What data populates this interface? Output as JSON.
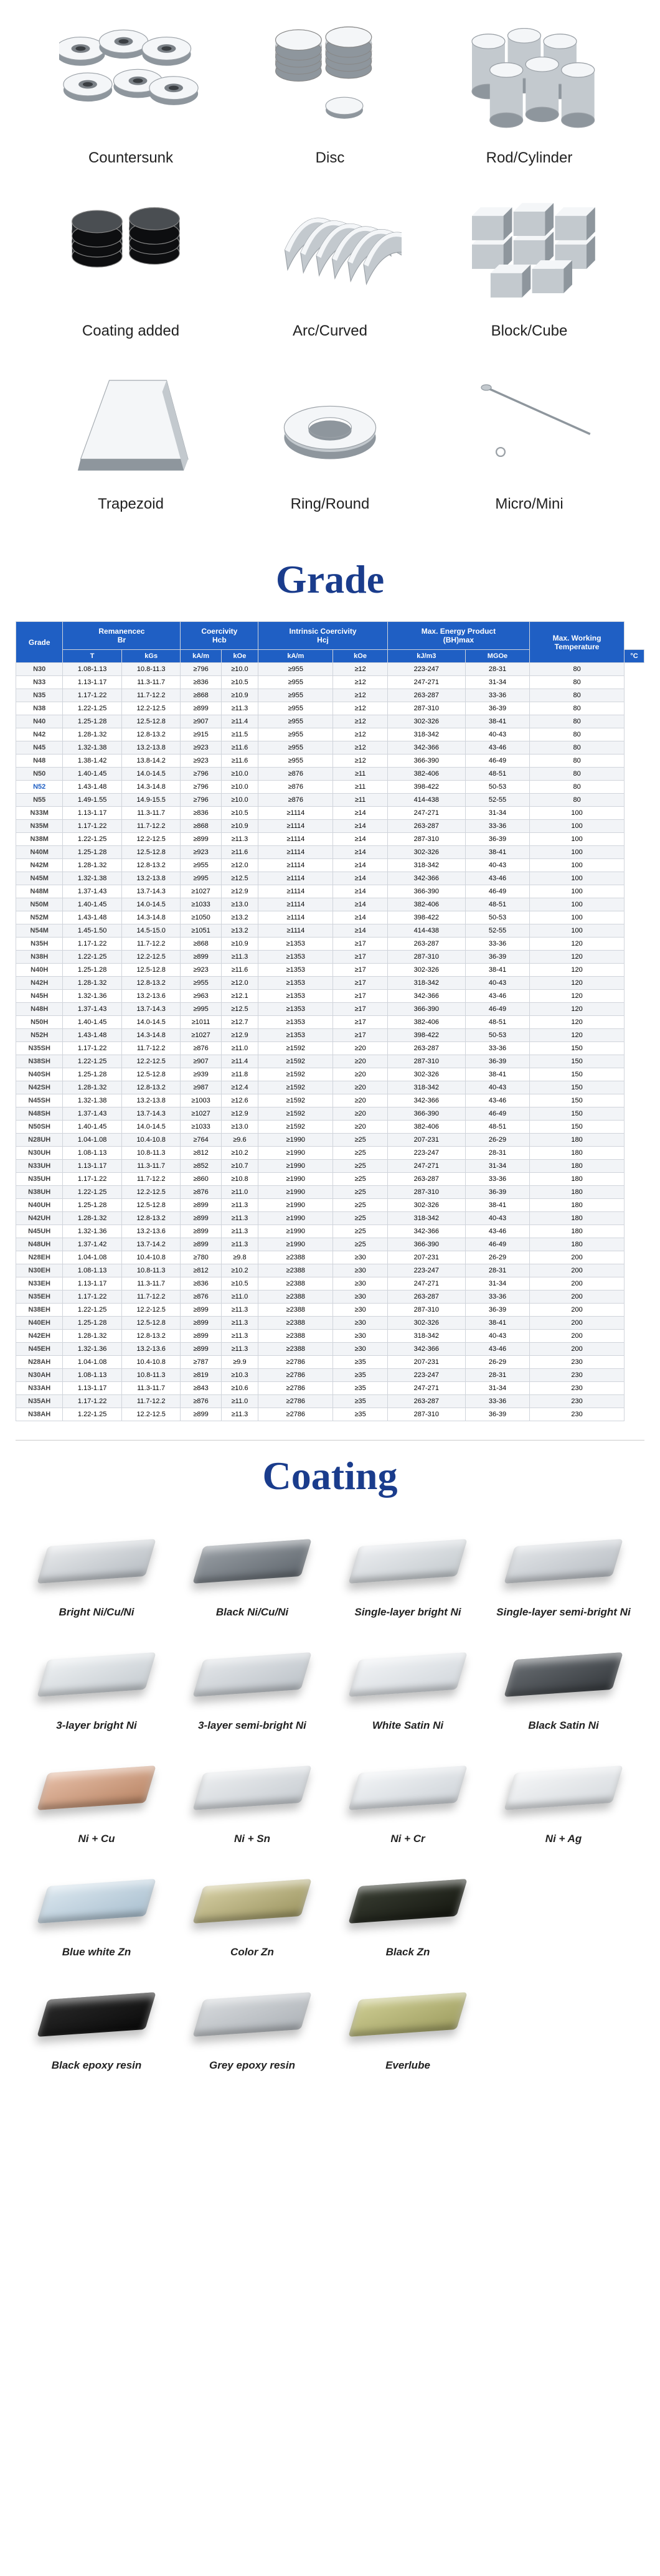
{
  "shapes": [
    {
      "id": "countersunk",
      "label": "Countersunk"
    },
    {
      "id": "disc",
      "label": "Disc"
    },
    {
      "id": "rod",
      "label": "Rod/Cylinder"
    },
    {
      "id": "coating-added",
      "label": "Coating added"
    },
    {
      "id": "arc",
      "label": "Arc/Curved"
    },
    {
      "id": "block",
      "label": "Block/Cube"
    },
    {
      "id": "trapezoid",
      "label": "Trapezoid"
    },
    {
      "id": "ring",
      "label": "Ring/Round"
    },
    {
      "id": "micro",
      "label": "Micro/Mini"
    }
  ],
  "section_titles": {
    "grade": "Grade",
    "coating": "Coating"
  },
  "grade_table": {
    "header_bg": "#1f5fc4",
    "header_fg": "#ffffff",
    "row_odd_bg": "#f2f4f7",
    "row_even_bg": "#ffffff",
    "border_color": "#d0d4db",
    "highlight_color": "#1f5fc4",
    "columns_top": [
      {
        "label": "Grade",
        "rowspan": 2
      },
      {
        "label": "Remanencec\nBr",
        "colspan": 2
      },
      {
        "label": "Coercivity\nHcb",
        "colspan": 2
      },
      {
        "label": "Intrinsic Coercivity\nHcj",
        "colspan": 2
      },
      {
        "label": "Max. Energy Product\n(BH)max",
        "colspan": 2
      },
      {
        "label": "Max. Working\nTemperature",
        "rowspan": 2
      }
    ],
    "columns_sub": [
      "T",
      "kGs",
      "kA/m",
      "kOe",
      "kA/m",
      "kOe",
      "kJ/m3",
      "MGOe",
      "°C"
    ],
    "rows": [
      [
        "N30",
        "1.08-1.13",
        "10.8-11.3",
        "≥796",
        "≥10.0",
        "≥955",
        "≥12",
        "223-247",
        "28-31",
        "80"
      ],
      [
        "N33",
        "1.13-1.17",
        "11.3-11.7",
        "≥836",
        "≥10.5",
        "≥955",
        "≥12",
        "247-271",
        "31-34",
        "80"
      ],
      [
        "N35",
        "1.17-1.22",
        "11.7-12.2",
        "≥868",
        "≥10.9",
        "≥955",
        "≥12",
        "263-287",
        "33-36",
        "80"
      ],
      [
        "N38",
        "1.22-1.25",
        "12.2-12.5",
        "≥899",
        "≥11.3",
        "≥955",
        "≥12",
        "287-310",
        "36-39",
        "80"
      ],
      [
        "N40",
        "1.25-1.28",
        "12.5-12.8",
        "≥907",
        "≥11.4",
        "≥955",
        "≥12",
        "302-326",
        "38-41",
        "80"
      ],
      [
        "N42",
        "1.28-1.32",
        "12.8-13.2",
        "≥915",
        "≥11.5",
        "≥955",
        "≥12",
        "318-342",
        "40-43",
        "80"
      ],
      [
        "N45",
        "1.32-1.38",
        "13.2-13.8",
        "≥923",
        "≥11.6",
        "≥955",
        "≥12",
        "342-366",
        "43-46",
        "80"
      ],
      [
        "N48",
        "1.38-1.42",
        "13.8-14.2",
        "≥923",
        "≥11.6",
        "≥955",
        "≥12",
        "366-390",
        "46-49",
        "80"
      ],
      [
        "N50",
        "1.40-1.45",
        "14.0-14.5",
        "≥796",
        "≥10.0",
        "≥876",
        "≥11",
        "382-406",
        "48-51",
        "80"
      ],
      [
        "N52",
        "1.43-1.48",
        "14.3-14.8",
        "≥796",
        "≥10.0",
        "≥876",
        "≥11",
        "398-422",
        "50-53",
        "80"
      ],
      [
        "N55",
        "1.49-1.55",
        "14.9-15.5",
        "≥796",
        "≥10.0",
        "≥876",
        "≥11",
        "414-438",
        "52-55",
        "80"
      ],
      [
        "N33M",
        "1.13-1.17",
        "11.3-11.7",
        "≥836",
        "≥10.5",
        "≥1114",
        "≥14",
        "247-271",
        "31-34",
        "100"
      ],
      [
        "N35M",
        "1.17-1.22",
        "11.7-12.2",
        "≥868",
        "≥10.9",
        "≥1114",
        "≥14",
        "263-287",
        "33-36",
        "100"
      ],
      [
        "N38M",
        "1.22-1.25",
        "12.2-12.5",
        "≥899",
        "≥11.3",
        "≥1114",
        "≥14",
        "287-310",
        "36-39",
        "100"
      ],
      [
        "N40M",
        "1.25-1.28",
        "12.5-12.8",
        "≥923",
        "≥11.6",
        "≥1114",
        "≥14",
        "302-326",
        "38-41",
        "100"
      ],
      [
        "N42M",
        "1.28-1.32",
        "12.8-13.2",
        "≥955",
        "≥12.0",
        "≥1114",
        "≥14",
        "318-342",
        "40-43",
        "100"
      ],
      [
        "N45M",
        "1.32-1.38",
        "13.2-13.8",
        "≥995",
        "≥12.5",
        "≥1114",
        "≥14",
        "342-366",
        "43-46",
        "100"
      ],
      [
        "N48M",
        "1.37-1.43",
        "13.7-14.3",
        "≥1027",
        "≥12.9",
        "≥1114",
        "≥14",
        "366-390",
        "46-49",
        "100"
      ],
      [
        "N50M",
        "1.40-1.45",
        "14.0-14.5",
        "≥1033",
        "≥13.0",
        "≥1114",
        "≥14",
        "382-406",
        "48-51",
        "100"
      ],
      [
        "N52M",
        "1.43-1.48",
        "14.3-14.8",
        "≥1050",
        "≥13.2",
        "≥1114",
        "≥14",
        "398-422",
        "50-53",
        "100"
      ],
      [
        "N54M",
        "1.45-1.50",
        "14.5-15.0",
        "≥1051",
        "≥13.2",
        "≥1114",
        "≥14",
        "414-438",
        "52-55",
        "100"
      ],
      [
        "N35H",
        "1.17-1.22",
        "11.7-12.2",
        "≥868",
        "≥10.9",
        "≥1353",
        "≥17",
        "263-287",
        "33-36",
        "120"
      ],
      [
        "N38H",
        "1.22-1.25",
        "12.2-12.5",
        "≥899",
        "≥11.3",
        "≥1353",
        "≥17",
        "287-310",
        "36-39",
        "120"
      ],
      [
        "N40H",
        "1.25-1.28",
        "12.5-12.8",
        "≥923",
        "≥11.6",
        "≥1353",
        "≥17",
        "302-326",
        "38-41",
        "120"
      ],
      [
        "N42H",
        "1.28-1.32",
        "12.8-13.2",
        "≥955",
        "≥12.0",
        "≥1353",
        "≥17",
        "318-342",
        "40-43",
        "120"
      ],
      [
        "N45H",
        "1.32-1.36",
        "13.2-13.6",
        "≥963",
        "≥12.1",
        "≥1353",
        "≥17",
        "342-366",
        "43-46",
        "120"
      ],
      [
        "N48H",
        "1.37-1.43",
        "13.7-14.3",
        "≥995",
        "≥12.5",
        "≥1353",
        "≥17",
        "366-390",
        "46-49",
        "120"
      ],
      [
        "N50H",
        "1.40-1.45",
        "14.0-14.5",
        "≥1011",
        "≥12.7",
        "≥1353",
        "≥17",
        "382-406",
        "48-51",
        "120"
      ],
      [
        "N52H",
        "1.43-1.48",
        "14.3-14.8",
        "≥1027",
        "≥12.9",
        "≥1353",
        "≥17",
        "398-422",
        "50-53",
        "120"
      ],
      [
        "N35SH",
        "1.17-1.22",
        "11.7-12.2",
        "≥876",
        "≥11.0",
        "≥1592",
        "≥20",
        "263-287",
        "33-36",
        "150"
      ],
      [
        "N38SH",
        "1.22-1.25",
        "12.2-12.5",
        "≥907",
        "≥11.4",
        "≥1592",
        "≥20",
        "287-310",
        "36-39",
        "150"
      ],
      [
        "N40SH",
        "1.25-1.28",
        "12.5-12.8",
        "≥939",
        "≥11.8",
        "≥1592",
        "≥20",
        "302-326",
        "38-41",
        "150"
      ],
      [
        "N42SH",
        "1.28-1.32",
        "12.8-13.2",
        "≥987",
        "≥12.4",
        "≥1592",
        "≥20",
        "318-342",
        "40-43",
        "150"
      ],
      [
        "N45SH",
        "1.32-1.38",
        "13.2-13.8",
        "≥1003",
        "≥12.6",
        "≥1592",
        "≥20",
        "342-366",
        "43-46",
        "150"
      ],
      [
        "N48SH",
        "1.37-1.43",
        "13.7-14.3",
        "≥1027",
        "≥12.9",
        "≥1592",
        "≥20",
        "366-390",
        "46-49",
        "150"
      ],
      [
        "N50SH",
        "1.40-1.45",
        "14.0-14.5",
        "≥1033",
        "≥13.0",
        "≥1592",
        "≥20",
        "382-406",
        "48-51",
        "150"
      ],
      [
        "N28UH",
        "1.04-1.08",
        "10.4-10.8",
        "≥764",
        "≥9.6",
        "≥1990",
        "≥25",
        "207-231",
        "26-29",
        "180"
      ],
      [
        "N30UH",
        "1.08-1.13",
        "10.8-11.3",
        "≥812",
        "≥10.2",
        "≥1990",
        "≥25",
        "223-247",
        "28-31",
        "180"
      ],
      [
        "N33UH",
        "1.13-1.17",
        "11.3-11.7",
        "≥852",
        "≥10.7",
        "≥1990",
        "≥25",
        "247-271",
        "31-34",
        "180"
      ],
      [
        "N35UH",
        "1.17-1.22",
        "11.7-12.2",
        "≥860",
        "≥10.8",
        "≥1990",
        "≥25",
        "263-287",
        "33-36",
        "180"
      ],
      [
        "N38UH",
        "1.22-1.25",
        "12.2-12.5",
        "≥876",
        "≥11.0",
        "≥1990",
        "≥25",
        "287-310",
        "36-39",
        "180"
      ],
      [
        "N40UH",
        "1.25-1.28",
        "12.5-12.8",
        "≥899",
        "≥11.3",
        "≥1990",
        "≥25",
        "302-326",
        "38-41",
        "180"
      ],
      [
        "N42UH",
        "1.28-1.32",
        "12.8-13.2",
        "≥899",
        "≥11.3",
        "≥1990",
        "≥25",
        "318-342",
        "40-43",
        "180"
      ],
      [
        "N45UH",
        "1.32-1.36",
        "13.2-13.6",
        "≥899",
        "≥11.3",
        "≥1990",
        "≥25",
        "342-366",
        "43-46",
        "180"
      ],
      [
        "N48UH",
        "1.37-1.42",
        "13.7-14.2",
        "≥899",
        "≥11.3",
        "≥1990",
        "≥25",
        "366-390",
        "46-49",
        "180"
      ],
      [
        "N28EH",
        "1.04-1.08",
        "10.4-10.8",
        "≥780",
        "≥9.8",
        "≥2388",
        "≥30",
        "207-231",
        "26-29",
        "200"
      ],
      [
        "N30EH",
        "1.08-1.13",
        "10.8-11.3",
        "≥812",
        "≥10.2",
        "≥2388",
        "≥30",
        "223-247",
        "28-31",
        "200"
      ],
      [
        "N33EH",
        "1.13-1.17",
        "11.3-11.7",
        "≥836",
        "≥10.5",
        "≥2388",
        "≥30",
        "247-271",
        "31-34",
        "200"
      ],
      [
        "N35EH",
        "1.17-1.22",
        "11.7-12.2",
        "≥876",
        "≥11.0",
        "≥2388",
        "≥30",
        "263-287",
        "33-36",
        "200"
      ],
      [
        "N38EH",
        "1.22-1.25",
        "12.2-12.5",
        "≥899",
        "≥11.3",
        "≥2388",
        "≥30",
        "287-310",
        "36-39",
        "200"
      ],
      [
        "N40EH",
        "1.25-1.28",
        "12.5-12.8",
        "≥899",
        "≥11.3",
        "≥2388",
        "≥30",
        "302-326",
        "38-41",
        "200"
      ],
      [
        "N42EH",
        "1.28-1.32",
        "12.8-13.2",
        "≥899",
        "≥11.3",
        "≥2388",
        "≥30",
        "318-342",
        "40-43",
        "200"
      ],
      [
        "N45EH",
        "1.32-1.36",
        "13.2-13.6",
        "≥899",
        "≥11.3",
        "≥2388",
        "≥30",
        "342-366",
        "43-46",
        "200"
      ],
      [
        "N28AH",
        "1.04-1.08",
        "10.4-10.8",
        "≥787",
        "≥9.9",
        "≥2786",
        "≥35",
        "207-231",
        "26-29",
        "230"
      ],
      [
        "N30AH",
        "1.08-1.13",
        "10.8-11.3",
        "≥819",
        "≥10.3",
        "≥2786",
        "≥35",
        "223-247",
        "28-31",
        "230"
      ],
      [
        "N33AH",
        "1.13-1.17",
        "11.3-11.7",
        "≥843",
        "≥10.6",
        "≥2786",
        "≥35",
        "247-271",
        "31-34",
        "230"
      ],
      [
        "N35AH",
        "1.17-1.22",
        "11.7-12.2",
        "≥876",
        "≥11.0",
        "≥2786",
        "≥35",
        "263-287",
        "33-36",
        "230"
      ],
      [
        "N38AH",
        "1.22-1.25",
        "12.2-12.5",
        "≥899",
        "≥11.3",
        "≥2786",
        "≥35",
        "287-310",
        "36-39",
        "230"
      ]
    ],
    "highlight_grade": "N52"
  },
  "coatings": [
    {
      "label": "Bright Ni/Cu/Ni",
      "color1": "#e8eaec",
      "color2": "#b6bcc2"
    },
    {
      "label": "Black Ni/Cu/Ni",
      "color1": "#9aa0a6",
      "color2": "#5f666d"
    },
    {
      "label": "Single-layer bright Ni",
      "color1": "#eceef1",
      "color2": "#c4cace"
    },
    {
      "label": "Single-layer semi-bright Ni",
      "color1": "#e2e5e8",
      "color2": "#b9bec4"
    },
    {
      "label": "3-layer bright Ni",
      "color1": "#eef1f3",
      "color2": "#c5cbd0"
    },
    {
      "label": "3-layer semi-bright Ni",
      "color1": "#e4e7ea",
      "color2": "#bcc2c8"
    },
    {
      "label": "White Satin Ni",
      "color1": "#f2f4f6",
      "color2": "#d1d6db"
    },
    {
      "label": "Black Satin Ni",
      "color1": "#6a6f74",
      "color2": "#34383c"
    },
    {
      "label": "Ni + Cu",
      "color1": "#e7bfa8",
      "color2": "#b88464"
    },
    {
      "label": "Ni + Sn",
      "color1": "#eceef0",
      "color2": "#c8cdd2"
    },
    {
      "label": "Ni + Cr",
      "color1": "#f3f5f7",
      "color2": "#ced3d8"
    },
    {
      "label": "Ni + Ag",
      "color1": "#f6f7f8",
      "color2": "#d6dade"
    },
    {
      "label": "Blue white Zn",
      "color1": "#dbe7ef",
      "color2": "#a9bfcf"
    },
    {
      "label": "Color Zn",
      "color1": "#d6cfa4",
      "color2": "#9b9460"
    },
    {
      "label": "Black Zn",
      "color1": "#3a3f34",
      "color2": "#14160f"
    },
    {
      "label": "",
      "color1": "",
      "color2": "",
      "empty": true
    },
    {
      "label": "Black epoxy resin",
      "color1": "#2a2a2a",
      "color2": "#0a0a0a"
    },
    {
      "label": "Grey epoxy resin",
      "color1": "#d7dadd",
      "color2": "#adb2b7"
    },
    {
      "label": "Everlube",
      "color1": "#cfce94",
      "color2": "#9d9c5f"
    }
  ]
}
